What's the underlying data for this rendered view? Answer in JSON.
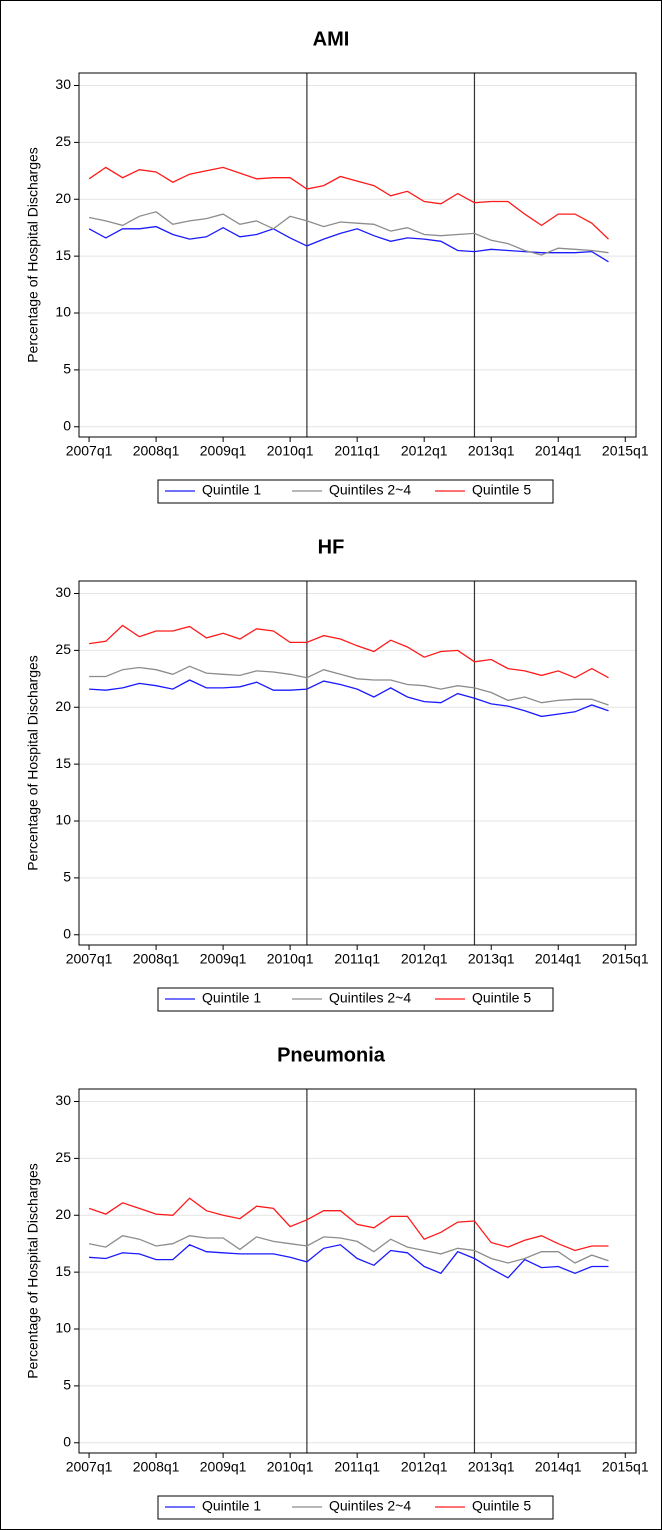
{
  "chart_data": [
    {
      "type": "line",
      "title": "AMI",
      "ylabel": "Percentage of Hospital Discharges",
      "x": [
        2007,
        2007.25,
        2007.5,
        2007.75,
        2008,
        2008.25,
        2008.5,
        2008.75,
        2009,
        2009.25,
        2009.5,
        2009.75,
        2010,
        2010.25,
        2010.5,
        2010.75,
        2011,
        2011.25,
        2011.5,
        2011.75,
        2012,
        2012.25,
        2012.5,
        2012.75,
        2013,
        2013.25,
        2013.5,
        2013.75,
        2014,
        2014.25,
        2014.5,
        2014.75
      ],
      "series": [
        {
          "name": "Quintile 1",
          "color": "#1a1aff",
          "values": [
            17.4,
            16.6,
            17.4,
            17.4,
            17.6,
            16.9,
            16.5,
            16.7,
            17.5,
            16.7,
            16.9,
            17.4,
            16.6,
            15.9,
            16.5,
            17.0,
            17.4,
            16.8,
            16.3,
            16.6,
            16.5,
            16.3,
            15.5,
            15.4,
            15.6,
            15.5,
            15.4,
            15.3,
            15.3,
            15.3,
            15.4,
            14.5
          ]
        },
        {
          "name": "Quintiles 2~4",
          "color": "#8c8c8c",
          "values": [
            18.4,
            18.1,
            17.7,
            18.5,
            18.9,
            17.8,
            18.1,
            18.3,
            18.7,
            17.8,
            18.1,
            17.4,
            18.5,
            18.1,
            17.6,
            18.0,
            17.9,
            17.8,
            17.2,
            17.5,
            16.9,
            16.8,
            16.9,
            17.0,
            16.4,
            16.1,
            15.5,
            15.1,
            15.7,
            15.6,
            15.5,
            15.3
          ]
        },
        {
          "name": "Quintile 5",
          "color": "#ff1a1a",
          "values": [
            21.8,
            22.8,
            21.9,
            22.6,
            22.4,
            21.5,
            22.2,
            22.5,
            22.8,
            22.3,
            21.8,
            21.9,
            21.9,
            20.9,
            21.2,
            22.0,
            21.6,
            21.2,
            20.3,
            20.7,
            19.8,
            19.6,
            20.5,
            19.7,
            19.8,
            19.8,
            18.7,
            17.7,
            18.7,
            18.7,
            17.9,
            16.5
          ]
        }
      ],
      "xlim": [
        2006.85,
        2015.16
      ],
      "ylim": [
        -0.9,
        31.1
      ],
      "xticks": [
        {
          "value": 2007,
          "label": "2007q1"
        },
        {
          "value": 2008,
          "label": "2008q1"
        },
        {
          "value": 2009,
          "label": "2009q1"
        },
        {
          "value": 2010,
          "label": "2010q1"
        },
        {
          "value": 2011,
          "label": "2011q1"
        },
        {
          "value": 2012,
          "label": "2012q1"
        },
        {
          "value": 2013,
          "label": "2013q1"
        },
        {
          "value": 2014,
          "label": "2014q1"
        },
        {
          "value": 2015,
          "label": "2015q1"
        }
      ],
      "yticks": [
        0,
        5,
        10,
        15,
        20,
        25,
        30
      ],
      "xlines": [
        2010.25,
        2012.75
      ],
      "grid": true,
      "legend": "bottom"
    },
    {
      "type": "line",
      "title": "HF",
      "ylabel": "Percentage of Hospital Discharges",
      "x": [
        2007,
        2007.25,
        2007.5,
        2007.75,
        2008,
        2008.25,
        2008.5,
        2008.75,
        2009,
        2009.25,
        2009.5,
        2009.75,
        2010,
        2010.25,
        2010.5,
        2010.75,
        2011,
        2011.25,
        2011.5,
        2011.75,
        2012,
        2012.25,
        2012.5,
        2012.75,
        2013,
        2013.25,
        2013.5,
        2013.75,
        2014,
        2014.25,
        2014.5,
        2014.75
      ],
      "series": [
        {
          "name": "Quintile 1",
          "color": "#1a1aff",
          "values": [
            21.6,
            21.5,
            21.7,
            22.1,
            21.9,
            21.6,
            22.4,
            21.7,
            21.7,
            21.8,
            22.2,
            21.5,
            21.5,
            21.6,
            22.3,
            22.0,
            21.6,
            20.9,
            21.7,
            20.9,
            20.5,
            20.4,
            21.2,
            20.8,
            20.3,
            20.1,
            19.7,
            19.2,
            19.4,
            19.6,
            20.2,
            19.7
          ]
        },
        {
          "name": "Quintiles 2~4",
          "color": "#8c8c8c",
          "values": [
            22.7,
            22.7,
            23.3,
            23.5,
            23.3,
            22.9,
            23.6,
            23.0,
            22.9,
            22.8,
            23.2,
            23.1,
            22.9,
            22.6,
            23.3,
            22.9,
            22.5,
            22.4,
            22.4,
            22.0,
            21.9,
            21.6,
            21.9,
            21.7,
            21.3,
            20.6,
            20.9,
            20.4,
            20.6,
            20.7,
            20.7,
            20.2
          ]
        },
        {
          "name": "Quintile 5",
          "color": "#ff1a1a",
          "values": [
            25.6,
            25.8,
            27.2,
            26.2,
            26.7,
            26.7,
            27.1,
            26.1,
            26.5,
            26.0,
            26.9,
            26.7,
            25.7,
            25.7,
            26.3,
            26.0,
            25.4,
            24.9,
            25.9,
            25.3,
            24.4,
            24.9,
            25.0,
            24.0,
            24.2,
            23.4,
            23.2,
            22.8,
            23.2,
            22.6,
            23.4,
            22.6
          ]
        }
      ],
      "xlim": [
        2006.85,
        2015.16
      ],
      "ylim": [
        -0.9,
        31.1
      ],
      "xticks": [
        {
          "value": 2007,
          "label": "2007q1"
        },
        {
          "value": 2008,
          "label": "2008q1"
        },
        {
          "value": 2009,
          "label": "2009q1"
        },
        {
          "value": 2010,
          "label": "2010q1"
        },
        {
          "value": 2011,
          "label": "2011q1"
        },
        {
          "value": 2012,
          "label": "2012q1"
        },
        {
          "value": 2013,
          "label": "2013q1"
        },
        {
          "value": 2014,
          "label": "2014q1"
        },
        {
          "value": 2015,
          "label": "2015q1"
        }
      ],
      "yticks": [
        0,
        5,
        10,
        15,
        20,
        25,
        30
      ],
      "xlines": [
        2010.25,
        2012.75
      ],
      "grid": true,
      "legend": "bottom"
    },
    {
      "type": "line",
      "title": "Pneumonia",
      "ylabel": "Percentage of Hospital Discharges",
      "x": [
        2007,
        2007.25,
        2007.5,
        2007.75,
        2008,
        2008.25,
        2008.5,
        2008.75,
        2009,
        2009.25,
        2009.5,
        2009.75,
        2010,
        2010.25,
        2010.5,
        2010.75,
        2011,
        2011.25,
        2011.5,
        2011.75,
        2012,
        2012.25,
        2012.5,
        2012.75,
        2013,
        2013.25,
        2013.5,
        2013.75,
        2014,
        2014.25,
        2014.5,
        2014.75
      ],
      "series": [
        {
          "name": "Quintile 1",
          "color": "#1a1aff",
          "values": [
            16.3,
            16.2,
            16.7,
            16.6,
            16.1,
            16.1,
            17.4,
            16.8,
            16.7,
            16.6,
            16.6,
            16.6,
            16.3,
            15.9,
            17.1,
            17.4,
            16.2,
            15.6,
            16.9,
            16.7,
            15.5,
            14.9,
            16.8,
            16.2,
            15.3,
            14.5,
            16.1,
            15.4,
            15.5,
            14.9,
            15.5,
            15.5
          ]
        },
        {
          "name": "Quintiles 2~4",
          "color": "#8c8c8c",
          "values": [
            17.5,
            17.2,
            18.2,
            17.9,
            17.3,
            17.5,
            18.2,
            18.0,
            18.0,
            17.0,
            18.1,
            17.7,
            17.5,
            17.3,
            18.1,
            18.0,
            17.7,
            16.8,
            17.9,
            17.2,
            16.9,
            16.6,
            17.1,
            16.9,
            16.2,
            15.8,
            16.2,
            16.8,
            16.8,
            15.8,
            16.5,
            16.0
          ]
        },
        {
          "name": "Quintile 5",
          "color": "#ff1a1a",
          "values": [
            20.6,
            20.1,
            21.1,
            20.6,
            20.1,
            20.0,
            21.5,
            20.4,
            20.0,
            19.7,
            20.8,
            20.6,
            19.0,
            19.6,
            20.4,
            20.4,
            19.2,
            18.9,
            19.9,
            19.9,
            17.9,
            18.5,
            19.4,
            19.5,
            17.6,
            17.2,
            17.8,
            18.2,
            17.5,
            16.9,
            17.3,
            17.3
          ]
        }
      ],
      "xlim": [
        2006.85,
        2015.16
      ],
      "ylim": [
        -0.9,
        31.1
      ],
      "xticks": [
        {
          "value": 2007,
          "label": "2007q1"
        },
        {
          "value": 2008,
          "label": "2008q1"
        },
        {
          "value": 2009,
          "label": "2009q1"
        },
        {
          "value": 2010,
          "label": "2010q1"
        },
        {
          "value": 2011,
          "label": "2011q1"
        },
        {
          "value": 2012,
          "label": "2012q1"
        },
        {
          "value": 2013,
          "label": "2013q1"
        },
        {
          "value": 2014,
          "label": "2014q1"
        },
        {
          "value": 2015,
          "label": "2015q1"
        }
      ],
      "yticks": [
        0,
        5,
        10,
        15,
        20,
        25,
        30
      ],
      "xlines": [
        2010.25,
        2012.75
      ],
      "grid": true,
      "legend": "bottom"
    }
  ]
}
